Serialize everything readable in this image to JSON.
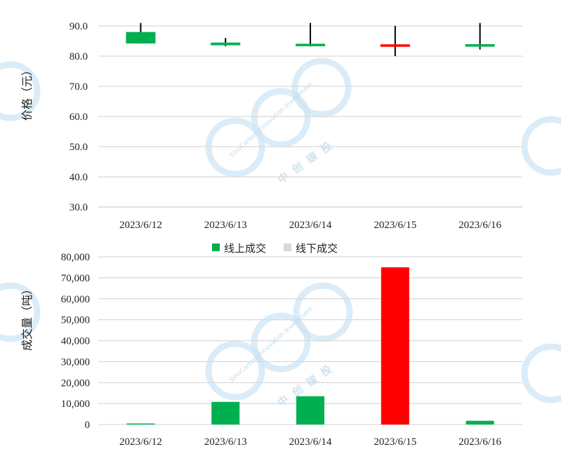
{
  "colors": {
    "up": "#00b050",
    "down": "#ff0000",
    "offline": "#d9d9d9",
    "grid": "#d9d9d9",
    "wick": "#000000"
  },
  "watermark": {
    "brand_en": "SinoCarbon Innovation Investment",
    "brand_cn": "中创碳投"
  },
  "chart_data": [
    {
      "type": "candlestick",
      "ylabel": "价格（元）",
      "ylim": [
        30,
        90
      ],
      "yticks": [
        "90.0",
        "80.0",
        "70.0",
        "60.0",
        "50.0",
        "40.0",
        "30.0"
      ],
      "categories": [
        "2023/6/12",
        "2023/6/13",
        "2023/6/14",
        "2023/6/15",
        "2023/6/16"
      ],
      "open": [
        84.2,
        84.5,
        83.4,
        83.3,
        83.2
      ],
      "close": [
        88.0,
        83.6,
        84.0,
        83.7,
        83.9
      ],
      "high": [
        91.0,
        86.0,
        91.0,
        90.0,
        91.0
      ],
      "low": [
        84.2,
        83.3,
        83.2,
        80.0,
        82.2
      ],
      "colors": [
        "#00b050",
        "#00b050",
        "#00b050",
        "#ff0000",
        "#00b050"
      ],
      "grid": true
    },
    {
      "type": "bar",
      "ylabel": "成交量（吨）",
      "ylim": [
        0,
        80000
      ],
      "yticks": [
        "80,000",
        "70,000",
        "60,000",
        "50,000",
        "40,000",
        "30,000",
        "20,000",
        "10,000",
        "0"
      ],
      "categories": [
        "2023/6/12",
        "2023/6/13",
        "2023/6/14",
        "2023/6/15",
        "2023/6/16"
      ],
      "legend_position": "top",
      "series": [
        {
          "name": "线上成交",
          "values": [
            500,
            10800,
            13500,
            75000,
            1800
          ]
        },
        {
          "name": "线下成交",
          "values": [
            0,
            0,
            0,
            0,
            0
          ]
        }
      ],
      "bar_colors": [
        "#00b050",
        "#00b050",
        "#00b050",
        "#ff0000",
        "#00b050"
      ],
      "grid": true
    }
  ]
}
